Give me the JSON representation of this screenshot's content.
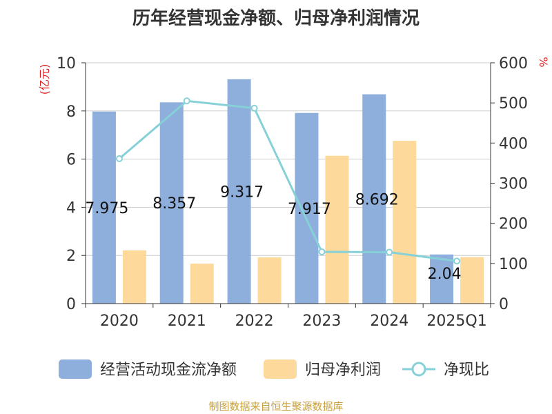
{
  "chart_data": {
    "type": "bar",
    "title": "历年经营现金净额、归母净利润情况",
    "categories": [
      "2020",
      "2021",
      "2022",
      "2023",
      "2024",
      "2025Q1"
    ],
    "series": [
      {
        "name": "经营活动现金流净额",
        "type": "bar",
        "axis": "left",
        "color": "#8eaedb",
        "values": [
          7.975,
          8.357,
          9.317,
          7.917,
          8.692,
          2.04
        ],
        "data_labels": [
          "7.975",
          "8.357",
          "9.317",
          "7.917",
          "8.692",
          "2.04"
        ]
      },
      {
        "name": "归母净利润",
        "type": "bar",
        "axis": "left",
        "color": "#fdd99b",
        "values": [
          2.21,
          1.66,
          1.92,
          6.14,
          6.76,
          1.93
        ]
      },
      {
        "name": "净现比",
        "type": "line",
        "axis": "right",
        "color": "#86d1d8",
        "values": [
          361,
          505,
          487,
          129,
          128,
          106
        ]
      }
    ],
    "left_axis": {
      "unit_label": "(亿元)",
      "min": 0,
      "max": 10,
      "ticks": [
        0,
        2,
        4,
        6,
        8,
        10
      ]
    },
    "right_axis": {
      "unit_label": "%",
      "min": 0,
      "max": 600,
      "ticks": [
        0,
        100,
        200,
        300,
        400,
        500,
        600
      ]
    },
    "grid": true,
    "legend_position": "bottom",
    "source": "制图数据来自恒生聚源数据库",
    "colors": {
      "title": "#333333",
      "axis_unit": "#e02020",
      "source": "#c8a03c"
    }
  }
}
